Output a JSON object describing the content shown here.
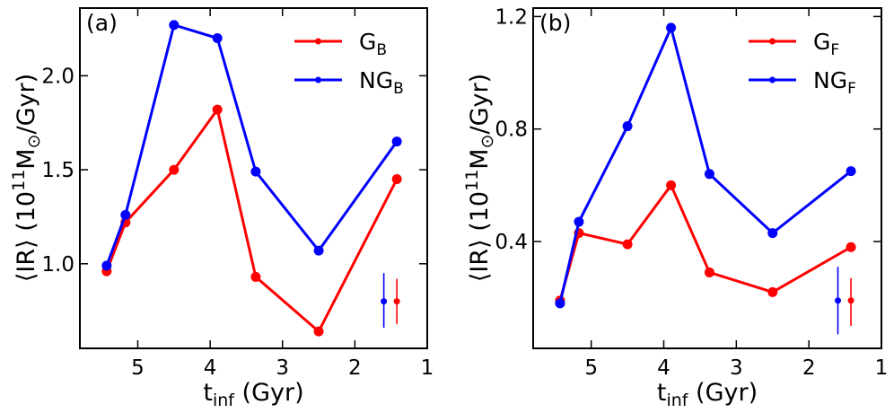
{
  "chart_data": [
    {
      "type": "line",
      "panel_label": "(a)",
      "xlabel": "t",
      "xlabel_sub": "inf",
      "xlabel_unit": " (Gyr)",
      "ylabel_pre": "⟨IR⟩ (10",
      "ylabel_sup": "11",
      "ylabel_mid": "M",
      "ylabel_sub": "⊙",
      "ylabel_post": "/Gyr)",
      "xlim": [
        5.8,
        1.0
      ],
      "ylim": [
        0.55,
        2.36
      ],
      "xticks": [
        5,
        4,
        3,
        2,
        1
      ],
      "xtick_labels": [
        "5",
        "4",
        "3",
        "2",
        "1"
      ],
      "yticks": [
        1.0,
        1.5,
        2.0
      ],
      "ytick_labels": [
        "1.0",
        "1.5",
        "2.0"
      ],
      "series": [
        {
          "name": "G",
          "name_sub": "B",
          "color": "#ff0000",
          "x": [
            5.43,
            5.17,
            4.5,
            3.9,
            3.37,
            2.5,
            1.42
          ],
          "y": [
            0.96,
            1.22,
            1.5,
            1.82,
            0.93,
            0.64,
            1.45
          ]
        },
        {
          "name": "NG",
          "name_sub": "B",
          "color": "#0000ff",
          "x": [
            5.43,
            5.17,
            4.5,
            3.9,
            3.37,
            2.5,
            1.42
          ],
          "y": [
            0.99,
            1.26,
            2.27,
            2.2,
            1.49,
            1.07,
            1.65
          ]
        }
      ],
      "error_bars": [
        {
          "color": "#0000ff",
          "x": 1.6,
          "y": 0.8,
          "yerr_low": 0.14,
          "yerr_high": 0.15
        },
        {
          "color": "#ff0000",
          "x": 1.42,
          "y": 0.8,
          "yerr_low": 0.12,
          "yerr_high": 0.12
        }
      ],
      "legend_position": "top-right"
    },
    {
      "type": "line",
      "panel_label": "(b)",
      "xlabel": "t",
      "xlabel_sub": "inf",
      "xlabel_unit": " (Gyr)",
      "ylabel_pre": "⟨IR⟩ (10",
      "ylabel_sup": "11",
      "ylabel_mid": "M",
      "ylabel_sub": "⊙",
      "ylabel_post": "/Gyr)",
      "xlim": [
        5.8,
        1.0
      ],
      "ylim": [
        0.02,
        1.23
      ],
      "xticks": [
        5,
        4,
        3,
        2,
        1
      ],
      "xtick_labels": [
        "5",
        "4",
        "3",
        "2",
        "1"
      ],
      "yticks": [
        0.4,
        0.8,
        1.2
      ],
      "ytick_labels": [
        "0.4",
        "0.8",
        "1.2"
      ],
      "series": [
        {
          "name": "G",
          "name_sub": "F",
          "color": "#ff0000",
          "x": [
            5.43,
            5.17,
            4.5,
            3.9,
            3.37,
            2.5,
            1.42
          ],
          "y": [
            0.19,
            0.43,
            0.39,
            0.6,
            0.29,
            0.22,
            0.38
          ]
        },
        {
          "name": "NG",
          "name_sub": "F",
          "color": "#0000ff",
          "x": [
            5.43,
            5.17,
            4.5,
            3.9,
            3.37,
            2.5,
            1.42
          ],
          "y": [
            0.18,
            0.47,
            0.81,
            1.16,
            0.64,
            0.43,
            0.65
          ]
        }
      ],
      "error_bars": [
        {
          "color": "#0000ff",
          "x": 1.6,
          "y": 0.19,
          "yerr_low": 0.12,
          "yerr_high": 0.12
        },
        {
          "color": "#ff0000",
          "x": 1.42,
          "y": 0.19,
          "yerr_low": 0.09,
          "yerr_high": 0.08
        }
      ],
      "legend_position": "top-right"
    }
  ]
}
